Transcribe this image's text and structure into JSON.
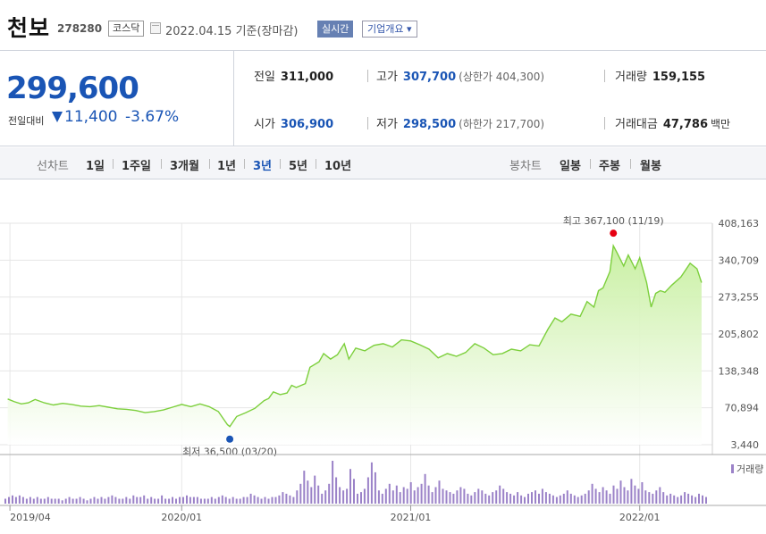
{
  "header": {
    "name": "천보",
    "code": "278280",
    "market": "코스닥",
    "date": "2022.04.15 기준(장마감)",
    "realtime": "실시간",
    "overview": "기업개요 ▾"
  },
  "summary": {
    "price": "299,600",
    "change_label": "전일대비",
    "change_amount": "11,400",
    "change_pct": "-3.67%",
    "prev_close": {
      "label": "전일",
      "value": "311,000"
    },
    "high": {
      "label": "고가",
      "value": "307,700",
      "limit": "(상한가 404,300)"
    },
    "volume": {
      "label": "거래량",
      "value": "159,155"
    },
    "open": {
      "label": "시가",
      "value": "306,900"
    },
    "low": {
      "label": "저가",
      "value": "298,500",
      "limit": "(하한가 217,700)"
    },
    "trade_value": {
      "label": "거래대금",
      "value": "47,786",
      "unit": "백만"
    }
  },
  "periods": {
    "line_label": "선차트",
    "line_options": [
      "1일",
      "1주일",
      "3개월",
      "1년",
      "3년",
      "5년",
      "10년"
    ],
    "selected": "3년",
    "candle_label": "봉차트",
    "candle_options": [
      "일봉",
      "주봉",
      "월봉"
    ]
  },
  "colors": {
    "line": "#7ccf3c",
    "fill_top": "#c6ef9e",
    "bar": "#9b82c8",
    "high": "#e60012",
    "low": "#1a55b5"
  },
  "chart_data": {
    "type": "area",
    "title": "",
    "ylim": [
      3440,
      408163
    ],
    "y_ticks": [
      "408,163",
      "340,709",
      "273,255",
      "205,802",
      "138,348",
      "70,894",
      "3,440"
    ],
    "x_ticks": [
      {
        "label": "2019/04",
        "x": 2019.25
      },
      {
        "label": "2020/01",
        "x": 2020.0
      },
      {
        "label": "2021/01",
        "x": 2021.0
      },
      {
        "label": "2022/01",
        "x": 2022.0
      }
    ],
    "xlim": [
      2019.23,
      2022.29
    ],
    "high_label": "최고 367,100 (11/19)",
    "high_point": [
      2021.885,
      367100
    ],
    "low_label": "최저 36,500 (03/20)",
    "low_point": [
      2020.21,
      36500
    ],
    "volume_legend": "거래량",
    "series": [
      [
        2019.24,
        87000
      ],
      [
        2019.27,
        82000
      ],
      [
        2019.3,
        78000
      ],
      [
        2019.33,
        80000
      ],
      [
        2019.36,
        86000
      ],
      [
        2019.4,
        80000
      ],
      [
        2019.44,
        76000
      ],
      [
        2019.48,
        79000
      ],
      [
        2019.52,
        77000
      ],
      [
        2019.56,
        74000
      ],
      [
        2019.6,
        73000
      ],
      [
        2019.64,
        75000
      ],
      [
        2019.68,
        72000
      ],
      [
        2019.72,
        69000
      ],
      [
        2019.76,
        68000
      ],
      [
        2019.8,
        66000
      ],
      [
        2019.84,
        62000
      ],
      [
        2019.88,
        64000
      ],
      [
        2019.92,
        67000
      ],
      [
        2019.96,
        72000
      ],
      [
        2020.0,
        77000
      ],
      [
        2020.04,
        73000
      ],
      [
        2020.08,
        78000
      ],
      [
        2020.12,
        73000
      ],
      [
        2020.16,
        64000
      ],
      [
        2020.2,
        40000
      ],
      [
        2020.21,
        36500
      ],
      [
        2020.24,
        55000
      ],
      [
        2020.28,
        62000
      ],
      [
        2020.32,
        70000
      ],
      [
        2020.36,
        84000
      ],
      [
        2020.38,
        88000
      ],
      [
        2020.4,
        100000
      ],
      [
        2020.43,
        95000
      ],
      [
        2020.46,
        98000
      ],
      [
        2020.48,
        112000
      ],
      [
        2020.5,
        108000
      ],
      [
        2020.54,
        115000
      ],
      [
        2020.56,
        145000
      ],
      [
        2020.6,
        155000
      ],
      [
        2020.62,
        170000
      ],
      [
        2020.65,
        160000
      ],
      [
        2020.68,
        168000
      ],
      [
        2020.71,
        188000
      ],
      [
        2020.73,
        160000
      ],
      [
        2020.76,
        180000
      ],
      [
        2020.8,
        175000
      ],
      [
        2020.84,
        185000
      ],
      [
        2020.88,
        188000
      ],
      [
        2020.92,
        182000
      ],
      [
        2020.96,
        195000
      ],
      [
        2021.0,
        193000
      ],
      [
        2021.04,
        186000
      ],
      [
        2021.08,
        178000
      ],
      [
        2021.12,
        162000
      ],
      [
        2021.16,
        170000
      ],
      [
        2021.2,
        165000
      ],
      [
        2021.24,
        172000
      ],
      [
        2021.28,
        188000
      ],
      [
        2021.32,
        180000
      ],
      [
        2021.36,
        168000
      ],
      [
        2021.4,
        170000
      ],
      [
        2021.44,
        178000
      ],
      [
        2021.48,
        175000
      ],
      [
        2021.52,
        186000
      ],
      [
        2021.56,
        184000
      ],
      [
        2021.6,
        215000
      ],
      [
        2021.63,
        235000
      ],
      [
        2021.66,
        228000
      ],
      [
        2021.7,
        242000
      ],
      [
        2021.74,
        238000
      ],
      [
        2021.77,
        265000
      ],
      [
        2021.8,
        255000
      ],
      [
        2021.82,
        285000
      ],
      [
        2021.84,
        290000
      ],
      [
        2021.87,
        320000
      ],
      [
        2021.885,
        367100
      ],
      [
        2021.9,
        355000
      ],
      [
        2021.93,
        330000
      ],
      [
        2021.95,
        350000
      ],
      [
        2021.98,
        325000
      ],
      [
        2022.0,
        345000
      ],
      [
        2022.03,
        300000
      ],
      [
        2022.05,
        255000
      ],
      [
        2022.07,
        280000
      ],
      [
        2022.09,
        285000
      ],
      [
        2022.11,
        282000
      ],
      [
        2022.14,
        295000
      ],
      [
        2022.18,
        310000
      ],
      [
        2022.22,
        335000
      ],
      [
        2022.25,
        325000
      ],
      [
        2022.27,
        299600
      ]
    ],
    "volume": [
      3,
      4,
      5,
      4,
      5,
      4,
      3,
      4,
      3,
      4,
      3,
      3,
      4,
      3,
      3,
      3,
      2,
      3,
      4,
      3,
      3,
      4,
      3,
      2,
      3,
      4,
      3,
      4,
      3,
      4,
      5,
      4,
      3,
      3,
      4,
      3,
      5,
      4,
      4,
      5,
      3,
      4,
      3,
      3,
      5,
      3,
      3,
      4,
      3,
      4,
      4,
      5,
      4,
      4,
      4,
      3,
      3,
      3,
      4,
      3,
      4,
      5,
      4,
      3,
      4,
      3,
      3,
      4,
      4,
      6,
      5,
      4,
      3,
      4,
      3,
      4,
      4,
      5,
      7,
      6,
      5,
      4,
      8,
      12,
      20,
      14,
      10,
      17,
      11,
      6,
      8,
      12,
      26,
      16,
      10,
      8,
      9,
      21,
      15,
      6,
      7,
      9,
      16,
      25,
      19,
      8,
      6,
      9,
      12,
      8,
      11,
      7,
      10,
      9,
      13,
      8,
      10,
      12,
      18,
      11,
      7,
      10,
      14,
      9,
      8,
      7,
      6,
      8,
      10,
      9,
      6,
      5,
      7,
      9,
      8,
      6,
      5,
      7,
      8,
      11,
      9,
      7,
      6,
      5,
      7,
      5,
      4,
      6,
      7,
      8,
      6,
      9,
      7,
      6,
      5,
      4,
      5,
      6,
      8,
      6,
      5,
      4,
      5,
      6,
      8,
      12,
      9,
      7,
      10,
      8,
      6,
      11,
      9,
      14,
      10,
      8,
      15,
      11,
      9,
      13,
      8,
      7,
      6,
      8,
      10,
      7,
      5,
      6,
      5,
      4,
      5,
      7,
      6,
      5,
      4,
      6,
      5,
      4
    ]
  }
}
